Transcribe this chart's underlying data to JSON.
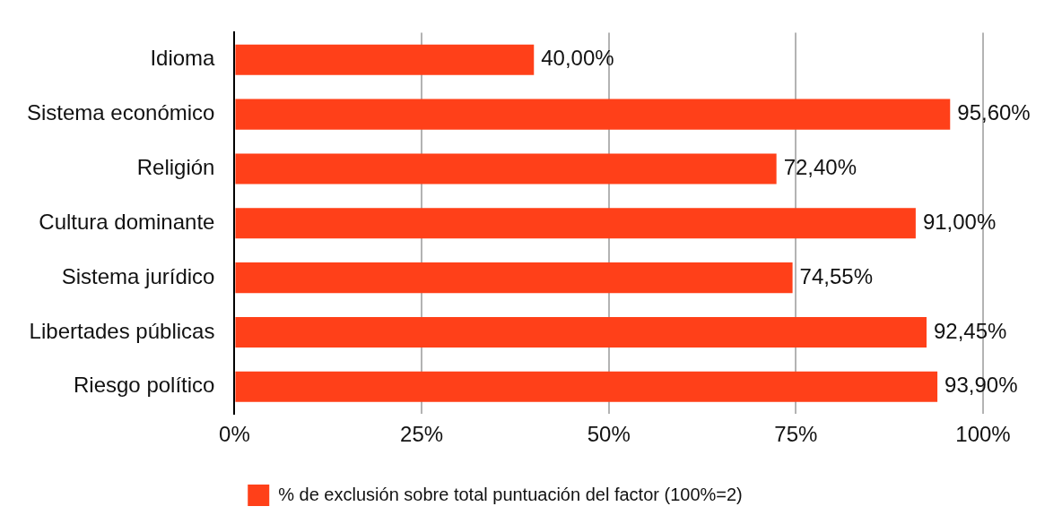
{
  "chart_data": {
    "type": "bar",
    "orientation": "horizontal",
    "categories": [
      "Idioma",
      "Sistema económico",
      "Religión",
      "Cultura dominante",
      "Sistema jurídico",
      "Libertades públicas",
      "Riesgo político"
    ],
    "series": [
      {
        "name": "% de exclusión sobre total puntuación del factor (100%=2)",
        "color": "#ff4019",
        "values": [
          40.0,
          95.6,
          72.4,
          91.0,
          74.55,
          92.45,
          93.9
        ],
        "value_labels": [
          "40,00%",
          "95,60%",
          "72,40%",
          "91,00%",
          "74,55%",
          "92,45%",
          "93,90%"
        ]
      }
    ],
    "xlim": [
      0,
      100
    ],
    "xticks": [
      {
        "value": 0,
        "label": "0%"
      },
      {
        "value": 25,
        "label": "25%"
      },
      {
        "value": 50,
        "label": "50%"
      },
      {
        "value": 75,
        "label": "75%"
      },
      {
        "value": 100,
        "label": "100%"
      }
    ],
    "grid": "x",
    "legend": "bottom"
  }
}
